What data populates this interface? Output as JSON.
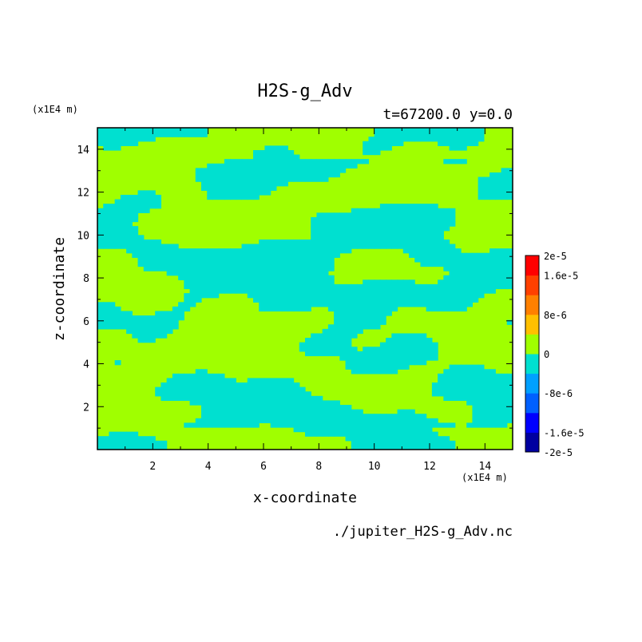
{
  "chart_data": {
    "type": "heatmap",
    "title": "H2S-g_Adv",
    "subtitle": "t=67200.0 y=0.0",
    "xlabel": "x-coordinate",
    "ylabel": "z-coordinate",
    "x_unit": "(x1E4 m)",
    "y_unit": "(x1E4 m)",
    "source_file": "./jupiter_H2S-g_Adv.nc",
    "xlim": [
      0,
      15
    ],
    "ylim": [
      0,
      15
    ],
    "x_ticks": [
      2,
      4,
      6,
      8,
      10,
      12,
      14
    ],
    "y_ticks": [
      2,
      4,
      6,
      8,
      10,
      12,
      14
    ],
    "colorbar": {
      "levels": [
        "-2e-5",
        "-1.6e-5",
        "-8e-6",
        "0",
        "8e-6",
        "1.6e-5",
        "2e-5"
      ],
      "colors": [
        "#0000a0",
        "#0000ff",
        "#0060ff",
        "#00a0ff",
        "#00e0d0",
        "#a0ff00",
        "#ffc000",
        "#ff8000",
        "#ff4000",
        "#ff0000"
      ]
    },
    "field_colors": {
      "negative": "#00e0d0",
      "positive": "#a0ff00"
    }
  }
}
